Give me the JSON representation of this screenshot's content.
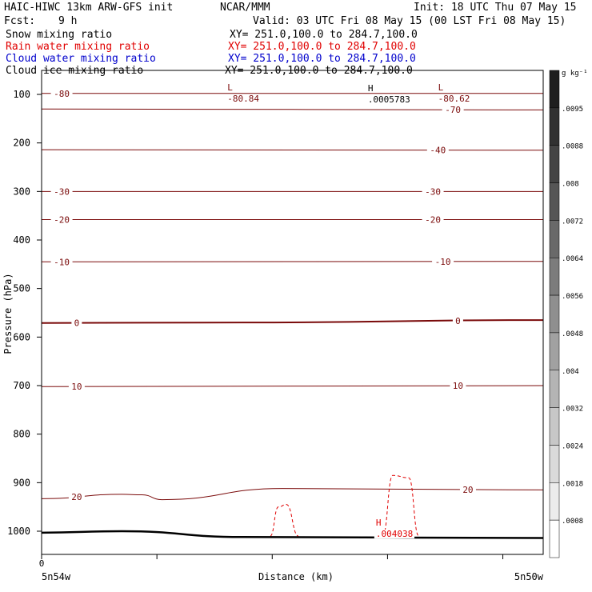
{
  "header": {
    "title_left": "HAIC-HIWC 13km ARW-GFS init",
    "org": "NCAR/MMM",
    "init": "Init: 18 UTC Thu 07 May 15",
    "fcst_label": "Fcst:",
    "fcst_value": "9 h",
    "valid": "Valid: 03 UTC Fri 08 May 15 (00 LST Fri 08 May 15)"
  },
  "fields": [
    {
      "name": "Snow mixing ratio",
      "xy": "XY= 251.0,100.0 to 284.7,100.0",
      "color": "#000000"
    },
    {
      "name": "Rain water mixing ratio",
      "xy": "XY= 251.0,100.0 to 284.7,100.0",
      "color": "#e00000"
    },
    {
      "name": "Cloud water mixing ratio",
      "xy": "XY= 251.0,100.0 to 284.7,100.0",
      "color": "#0000cc"
    },
    {
      "name": "Cloud ice mixing ratio",
      "xy": "XY= 251.0,100.0 to 284.7,100.0",
      "color": "#000000"
    }
  ],
  "colorbar": {
    "unit": "g kg⁻¹",
    "labels": [
      ".0095",
      ".0088",
      ".008",
      ".0072",
      ".0064",
      ".0056",
      ".0048",
      ".004",
      ".0032",
      ".0024",
      ".0018",
      ".0008"
    ]
  },
  "chart_data": {
    "type": "line",
    "title": "Snow mixing ratio / Rain water mixing ratio / Cloud water mixing ratio / Cloud ice mixing ratio",
    "xlabel": "Distance (km)",
    "ylabel": "Pressure (hPa)",
    "x_tick_labels": [
      "0"
    ],
    "x_range": [
      0,
      250
    ],
    "x_end_labels": {
      "left": "5n54w",
      "right": "5n50w"
    },
    "y_scale": "linear",
    "ylim": [
      1050,
      50
    ],
    "y_ticks": [
      100,
      200,
      300,
      400,
      500,
      600,
      700,
      800,
      900,
      1000
    ],
    "temperature_contours": [
      {
        "label": "-80",
        "x": [
          0,
          250
        ],
        "p": [
          98,
          98
        ]
      },
      {
        "label": "-70",
        "x": [
          0,
          250
        ],
        "p": [
          130,
          132
        ]
      },
      {
        "label": "-40",
        "x": [
          0,
          250
        ],
        "p": [
          214,
          215
        ]
      },
      {
        "label": "-30",
        "x": [
          0,
          250
        ],
        "p": [
          300,
          300
        ]
      },
      {
        "label": "-20",
        "x": [
          0,
          250
        ],
        "p": [
          358,
          358
        ]
      },
      {
        "label": "-10",
        "x": [
          0,
          250
        ],
        "p": [
          445,
          444
        ]
      },
      {
        "label": "0",
        "x": [
          0,
          100,
          250
        ],
        "p": [
          571,
          570,
          565
        ]
      },
      {
        "label": "10",
        "x": [
          0,
          250
        ],
        "p": [
          702,
          700
        ]
      },
      {
        "label": "20",
        "x": [
          0,
          40,
          50,
          60,
          120,
          250
        ],
        "p": [
          933,
          924,
          925,
          935,
          912,
          915
        ]
      }
    ],
    "extrema": [
      {
        "type": "L",
        "label": "-80.84",
        "x": 95,
        "p": 98
      },
      {
        "type": "L",
        "label": "-80.62",
        "x": 200,
        "p": 98
      },
      {
        "type": "H",
        "label": ".0005783",
        "x": 165,
        "p": 100
      },
      {
        "type": "H",
        "label": ".004038",
        "x": 169,
        "p": 995
      }
    ],
    "rain_dashed": [
      {
        "x": [
          114,
          118,
          122,
          128
        ],
        "p": [
          1010,
          950,
          945,
          1010
        ]
      },
      {
        "x": [
          170,
          175,
          183,
          188
        ],
        "p": [
          1010,
          885,
          890,
          1010
        ]
      }
    ],
    "terrain": {
      "x": [
        0,
        40,
        100,
        250
      ],
      "p": [
        1003,
        1000,
        1012,
        1014
      ]
    }
  }
}
